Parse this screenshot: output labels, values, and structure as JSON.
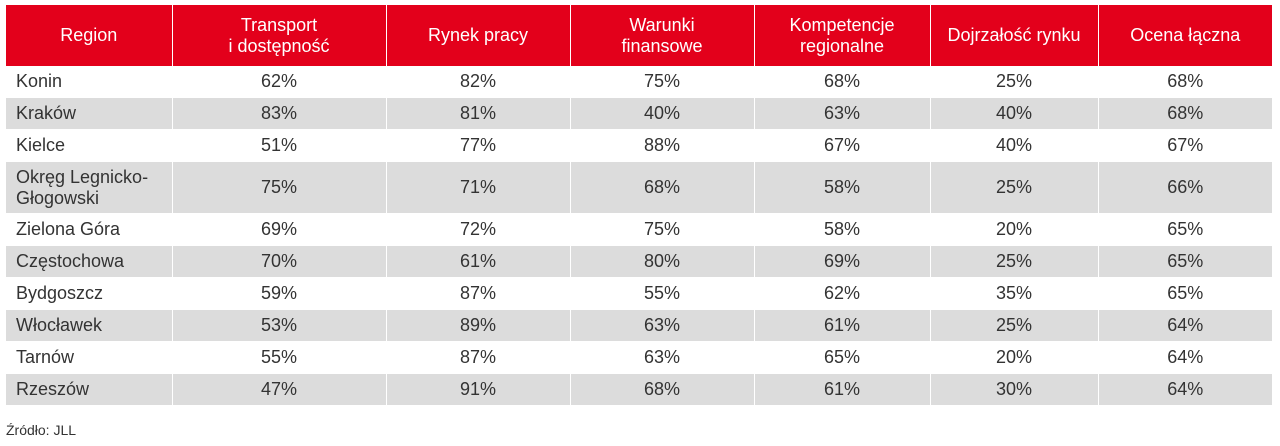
{
  "table": {
    "headers": [
      "Region",
      "Transport\ni dostępność",
      "Rynek pracy",
      "Warunki\nfinansowe",
      "Kompetencje\nregionalne",
      "Dojrzałość rynku",
      "Ocena łączna"
    ],
    "rows": [
      [
        "Konin",
        "62%",
        "82%",
        "75%",
        "68%",
        "25%",
        "68%"
      ],
      [
        "Kraków",
        "83%",
        "81%",
        "40%",
        "63%",
        "40%",
        "68%"
      ],
      [
        "Kielce",
        "51%",
        "77%",
        "88%",
        "67%",
        "40%",
        "67%"
      ],
      [
        "Okręg Legnicko-\nGłogowski",
        "75%",
        "71%",
        "68%",
        "58%",
        "25%",
        "66%"
      ],
      [
        "Zielona Góra",
        "69%",
        "72%",
        "75%",
        "58%",
        "20%",
        "65%"
      ],
      [
        "Częstochowa",
        "70%",
        "61%",
        "80%",
        "69%",
        "25%",
        "65%"
      ],
      [
        "Bydgoszcz",
        "59%",
        "87%",
        "55%",
        "62%",
        "35%",
        "65%"
      ],
      [
        "Włocławek",
        "53%",
        "89%",
        "63%",
        "61%",
        "25%",
        "64%"
      ],
      [
        "Tarnów",
        "55%",
        "87%",
        "63%",
        "65%",
        "20%",
        "64%"
      ],
      [
        "Rzeszów",
        "47%",
        "91%",
        "68%",
        "61%",
        "30%",
        "64%"
      ]
    ]
  },
  "source": "Źródło: JLL",
  "colors": {
    "header_bg": "#e3001b",
    "stripe": "#dcdcdc"
  }
}
